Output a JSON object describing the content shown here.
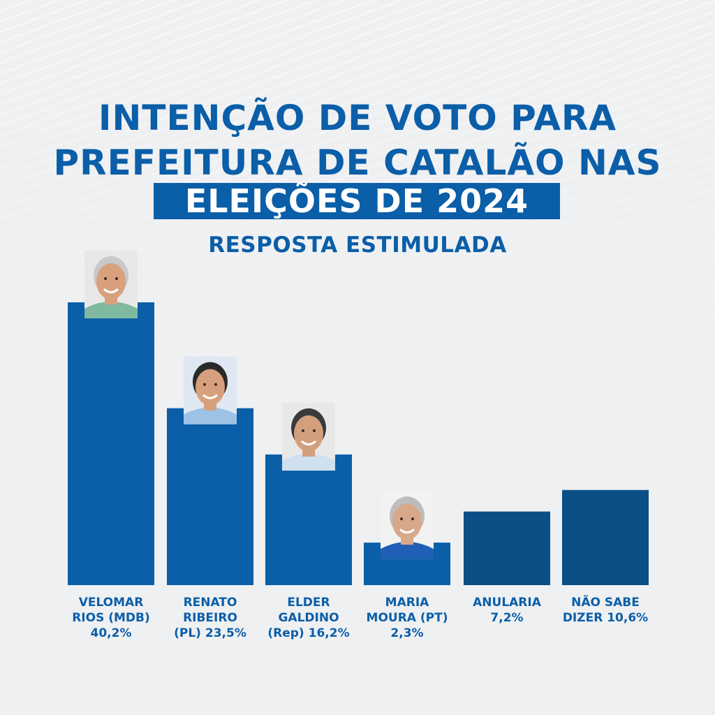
{
  "title": {
    "line1": "INTENÇÃO DE VOTO PARA",
    "line2": "PREFEITURA DE CATALÃO NAS",
    "line3": "ELEIÇÕES DE 2024",
    "subtitle": "RESPOSTA ESTIMULADA"
  },
  "colors": {
    "primary": "#0b5ea8",
    "dark": "#0a4f86",
    "background": "#eef0f2"
  },
  "chart_data": {
    "type": "bar",
    "title": "INTENÇÃO DE VOTO PARA PREFEITURA DE CATALÃO NAS ELEIÇÕES DE 2024",
    "subtitle": "RESPOSTA ESTIMULADA",
    "categories": [
      "VELOMAR RIOS (MDB) 40,2%",
      "RENATO RIBEIRO (PL) 23,5%",
      "ELDER GALDINO (Rep) 16,2%",
      "MARIA MOURA (PT) 2,3%",
      "ANULARIA 7,2%",
      "NÃO SABE DIZER 10,6%"
    ],
    "values": [
      40.2,
      23.5,
      16.2,
      2.3,
      7.2,
      10.6
    ],
    "ylim": [
      0,
      42
    ],
    "grid": false,
    "legend": "none"
  },
  "bar_labels": [
    "VELOMAR\nRIOS (MDB)\n40,2%",
    "RENATO\nRIBEIRO\n(PL) 23,5%",
    "ELDER\nGALDINO\n(Rep) 16,2%",
    "MARIA\nMOURA (PT)\n2,3%",
    "ANULARIA\n7,2%",
    "NÃO SABE\nDIZER 10,6%"
  ],
  "photos": [
    {
      "name": "velomar-photo-icon",
      "shirt": "#7fb9a0",
      "skin": "#d9a07e",
      "hair": "#c9c9c9",
      "bg": "#e8e8e8"
    },
    {
      "name": "renato-photo-icon",
      "shirt": "#9cc3e6",
      "skin": "#d6a07c",
      "hair": "#2a2a2a",
      "bg": "#dfe8f2"
    },
    {
      "name": "elder-photo-icon",
      "shirt": "#cfe0f0",
      "skin": "#d3a07d",
      "hair": "#3a3a3a",
      "bg": "#e8e8e8"
    },
    {
      "name": "maria-photo-icon",
      "shirt": "#1f5fb5",
      "skin": "#d8a88a",
      "hair": "#bdbdbd",
      "bg": "#f2f2f2"
    }
  ]
}
